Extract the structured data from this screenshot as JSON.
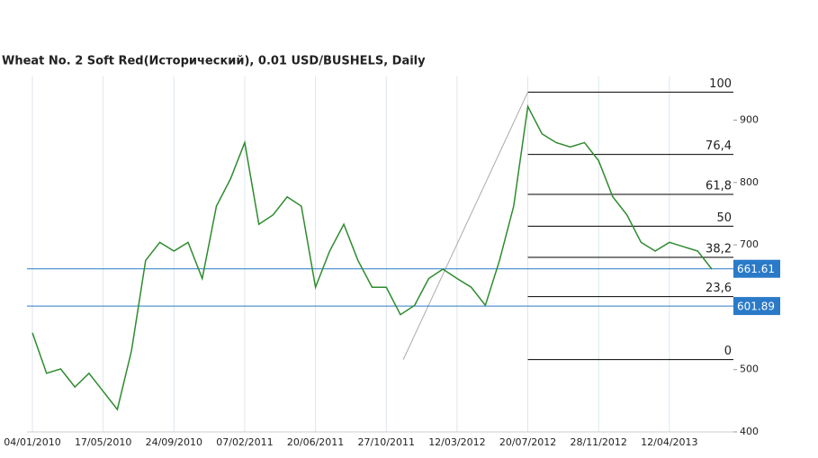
{
  "chart_data": {
    "type": "line",
    "title": "Wheat  No. 2 Soft Red(Исторический), 0.01 USD/BUSHELS, Daily",
    "categories": [
      "04/01/2010",
      null,
      null,
      null,
      null,
      "17/05/2010",
      null,
      null,
      null,
      null,
      "24/09/2010",
      null,
      null,
      null,
      null,
      "07/02/2011",
      null,
      null,
      null,
      null,
      "20/06/2011",
      null,
      null,
      null,
      null,
      "27/10/2011",
      null,
      null,
      null,
      null,
      "12/03/2012",
      null,
      null,
      null,
      null,
      "20/07/2012",
      null,
      null,
      null,
      null,
      "28/11/2012",
      null,
      null,
      null,
      null,
      "12/04/2013",
      null,
      null,
      null
    ],
    "series": [
      {
        "color": "#2e8b2e",
        "values": [
          559,
          494,
          501,
          472,
          494,
          465,
          436,
          530,
          675,
          704,
          690,
          704,
          646,
          762,
          806,
          864,
          733,
          748,
          777,
          762,
          632,
          690,
          733,
          675,
          632,
          632,
          588,
          603,
          646,
          661,
          646,
          632,
          603,
          675,
          762,
          922,
          878,
          864,
          857,
          864,
          835,
          777,
          748,
          704,
          690,
          704,
          697,
          690,
          661
        ]
      }
    ],
    "ylim": [
      400,
      970
    ],
    "yticks": [
      400,
      500,
      700,
      800,
      900
    ],
    "price_lines": [
      {
        "value": 661.61,
        "label": "661.61"
      },
      {
        "value": 601.89,
        "label": "601.89"
      }
    ],
    "fib_levels": [
      {
        "label": "100",
        "value": 945
      },
      {
        "label": "76,4",
        "value": 845
      },
      {
        "label": "61,8",
        "value": 781
      },
      {
        "label": "50",
        "value": 730
      },
      {
        "label": "38,2",
        "value": 680
      },
      {
        "label": "23,6",
        "value": 617
      },
      {
        "label": "0",
        "value": 516
      }
    ],
    "grid": true
  }
}
